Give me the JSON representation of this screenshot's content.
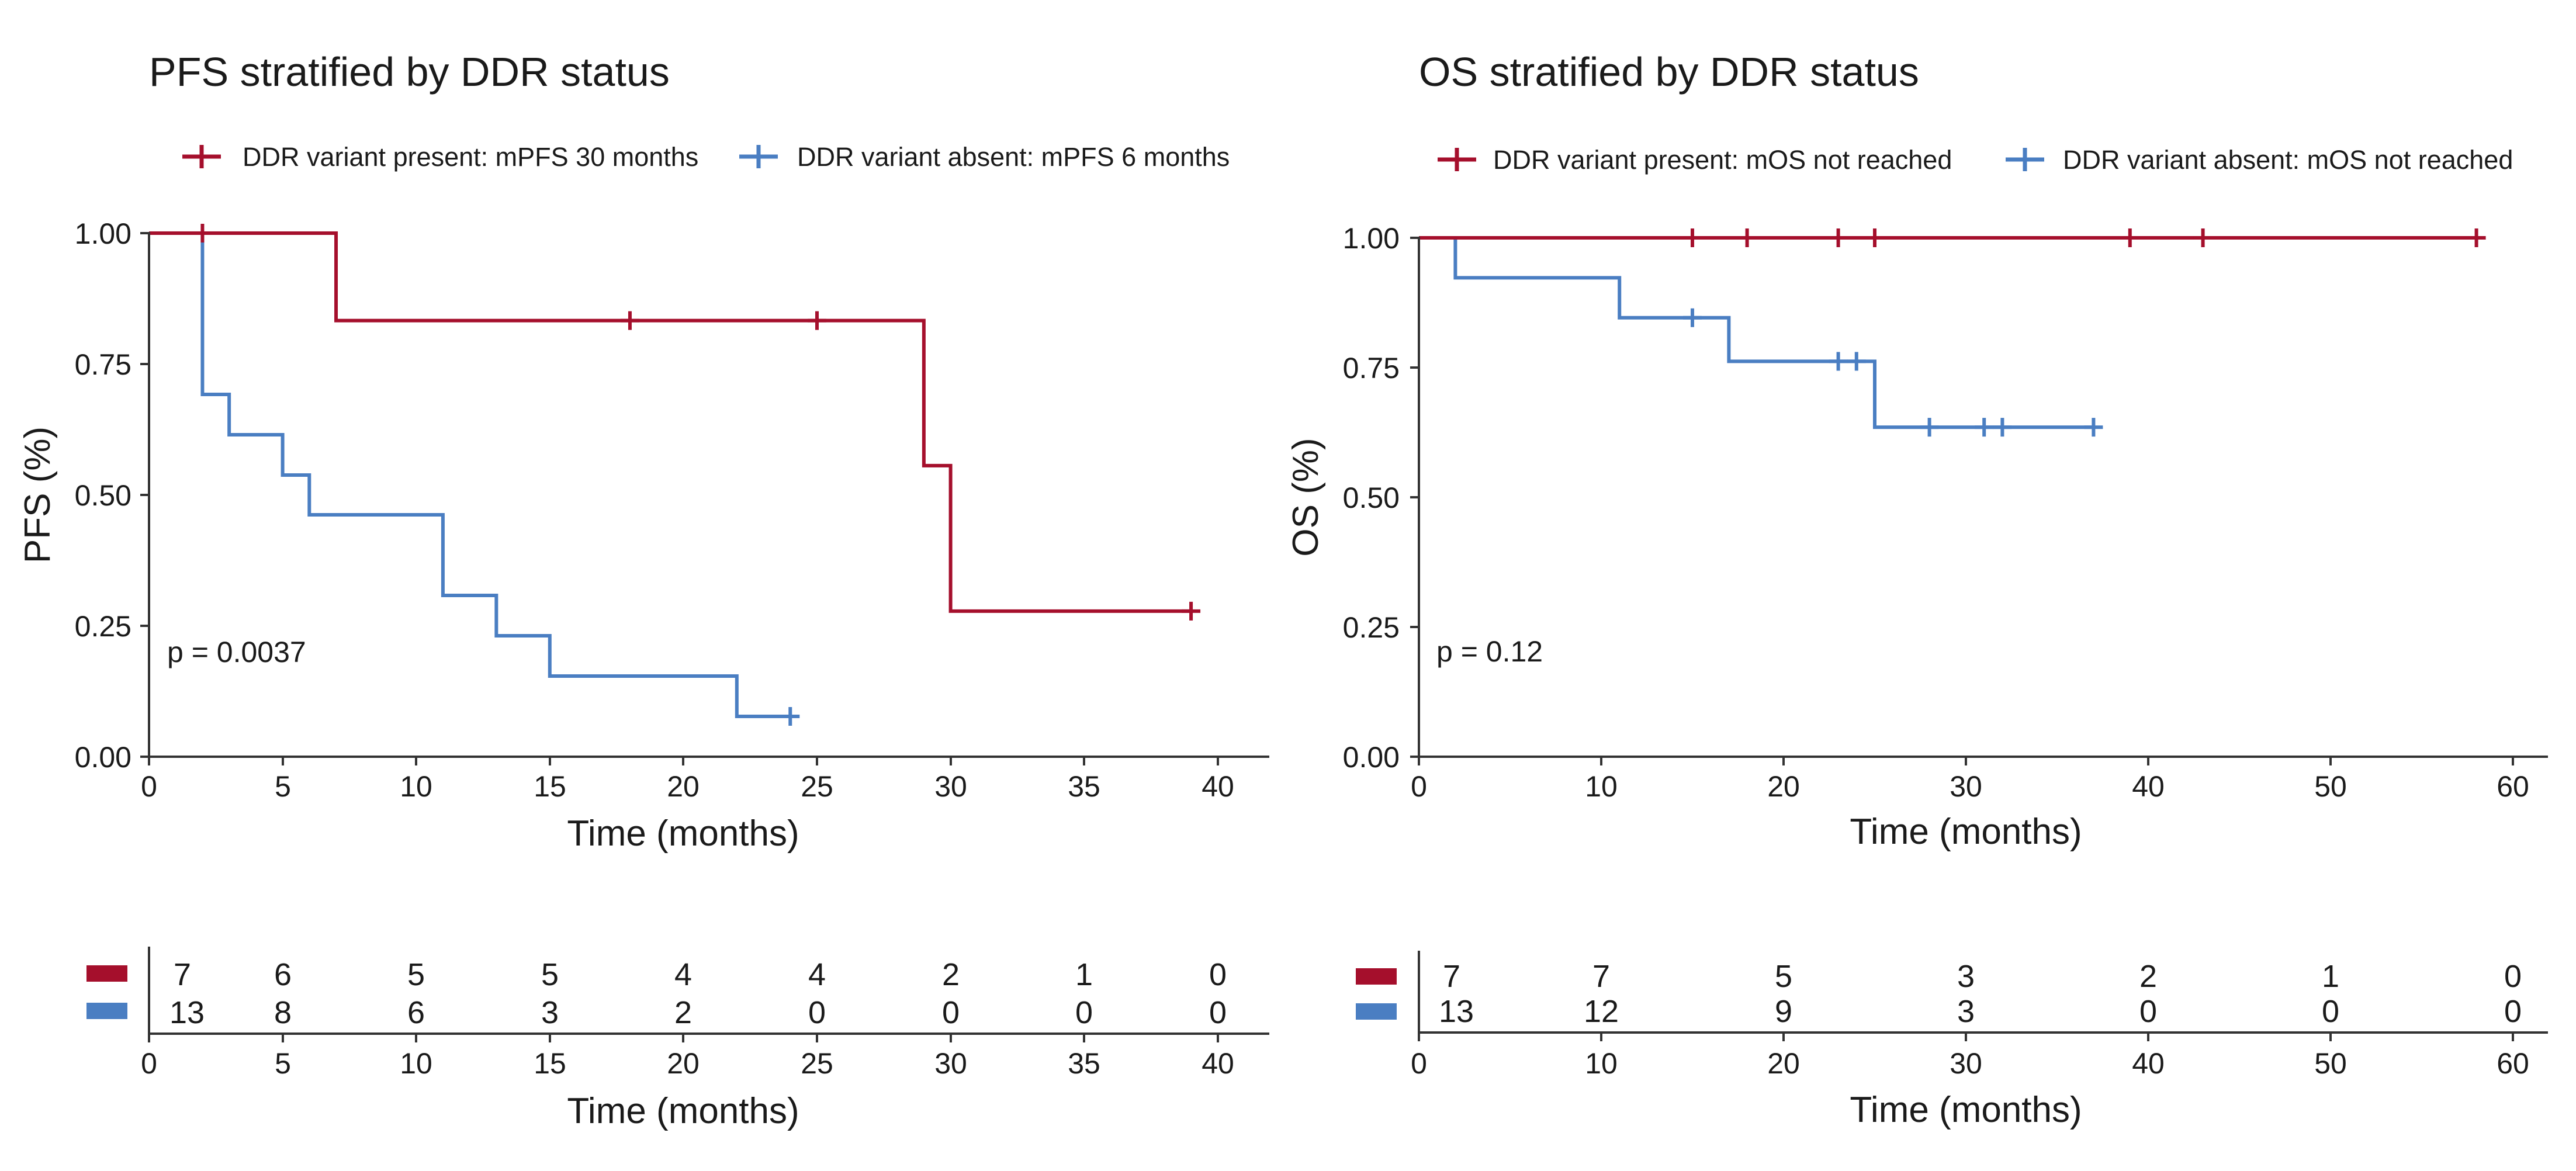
{
  "chart_data": [
    {
      "type": "line",
      "subtype": "kaplan-meier",
      "title": "PFS stratified by DDR status",
      "xlabel": "Time (months)",
      "ylabel": "PFS (%)",
      "xlim": [
        0,
        42
      ],
      "ylim": [
        0,
        1
      ],
      "xticks": [
        0,
        5,
        10,
        15,
        20,
        25,
        30,
        35,
        40
      ],
      "xtick_labels": [
        "0",
        "5",
        "10",
        "15",
        "20",
        "25",
        "30",
        "35",
        "40"
      ],
      "yticks": [
        0,
        0.25,
        0.5,
        0.75,
        1
      ],
      "ytick_labels": [
        "0.00",
        "0.25",
        "0.50",
        "0.75",
        "1.00"
      ],
      "pvalue": "p = 0.0037",
      "legend_position": "top",
      "series": [
        {
          "name": "DDR variant present: mPFS 30 months",
          "color": "#A50F2C",
          "steps": [
            [
              0,
              1
            ],
            [
              7,
              0.833
            ],
            [
              29,
              0.556
            ],
            [
              30,
              0.278
            ],
            [
              39,
              0.278
            ]
          ],
          "censors": [
            [
              2,
              1
            ],
            [
              18,
              0.833
            ],
            [
              25,
              0.833
            ],
            [
              39,
              0.278
            ]
          ]
        },
        {
          "name": "DDR variant absent: mPFS 6 months",
          "color": "#4A7EC2",
          "steps": [
            [
              0,
              1
            ],
            [
              2,
              0.692
            ],
            [
              3,
              0.615
            ],
            [
              5,
              0.538
            ],
            [
              6,
              0.462
            ],
            [
              11,
              0.308
            ],
            [
              13,
              0.231
            ],
            [
              15,
              0.154
            ],
            [
              22,
              0.077
            ],
            [
              24,
              0.077
            ]
          ],
          "censors": [
            [
              24,
              0.077
            ]
          ]
        }
      ],
      "risk_table": {
        "xlabel": "Time (months)",
        "times": [
          0,
          5,
          10,
          15,
          20,
          25,
          30,
          35,
          40
        ],
        "xtick_labels": [
          "0",
          "5",
          "10",
          "15",
          "20",
          "25",
          "30",
          "35",
          "40"
        ],
        "rows": [
          {
            "color": "#A50F2C",
            "values": [
              "7",
              "6",
              "5",
              "5",
              "4",
              "4",
              "2",
              "1",
              "0"
            ]
          },
          {
            "color": "#4A7EC2",
            "values": [
              "13",
              "8",
              "6",
              "3",
              "2",
              "0",
              "0",
              "0",
              "0"
            ]
          }
        ]
      }
    },
    {
      "type": "line",
      "subtype": "kaplan-meier",
      "title": "OS stratified by DDR status",
      "xlabel": "Time (months)",
      "ylabel": "OS (%)",
      "xlim": [
        0,
        62
      ],
      "ylim": [
        0,
        1
      ],
      "xticks": [
        0,
        10,
        20,
        30,
        40,
        50,
        60
      ],
      "xtick_labels": [
        "0",
        "10",
        "20",
        "30",
        "40",
        "50",
        "60"
      ],
      "yticks": [
        0,
        0.25,
        0.5,
        0.75,
        1
      ],
      "ytick_labels": [
        "0.00",
        "0.25",
        "0.50",
        "0.75",
        "1.00"
      ],
      "pvalue": "p = 0.12",
      "legend_position": "top",
      "series": [
        {
          "name": "DDR variant present: mOS not reached",
          "color": "#A50F2C",
          "steps": [
            [
              0,
              1
            ],
            [
              58,
              1
            ]
          ],
          "censors": [
            [
              15,
              1
            ],
            [
              18,
              1
            ],
            [
              23,
              1
            ],
            [
              25,
              1
            ],
            [
              39,
              1
            ],
            [
              43,
              1
            ],
            [
              58,
              1
            ]
          ]
        },
        {
          "name": "DDR variant absent: mOS not reached",
          "color": "#4A7EC2",
          "steps": [
            [
              0,
              1
            ],
            [
              2,
              0.923
            ],
            [
              11,
              0.846
            ],
            [
              17,
              0.762
            ],
            [
              25,
              0.635
            ],
            [
              37,
              0.635
            ]
          ],
          "censors": [
            [
              15,
              0.846
            ],
            [
              23,
              0.762
            ],
            [
              24,
              0.762
            ],
            [
              28,
              0.635
            ],
            [
              31,
              0.635
            ],
            [
              32,
              0.635
            ],
            [
              37,
              0.635
            ]
          ]
        }
      ],
      "risk_table": {
        "xlabel": "Time (months)",
        "times": [
          0,
          10,
          20,
          30,
          40,
          50,
          60
        ],
        "xtick_labels": [
          "0",
          "10",
          "20",
          "30",
          "40",
          "50",
          "60"
        ],
        "rows": [
          {
            "color": "#A50F2C",
            "values": [
              "7",
              "7",
              "5",
              "3",
              "2",
              "1",
              "0"
            ]
          },
          {
            "color": "#4A7EC2",
            "values": [
              "13",
              "12",
              "9",
              "3",
              "0",
              "0",
              "0"
            ]
          }
        ]
      }
    }
  ]
}
